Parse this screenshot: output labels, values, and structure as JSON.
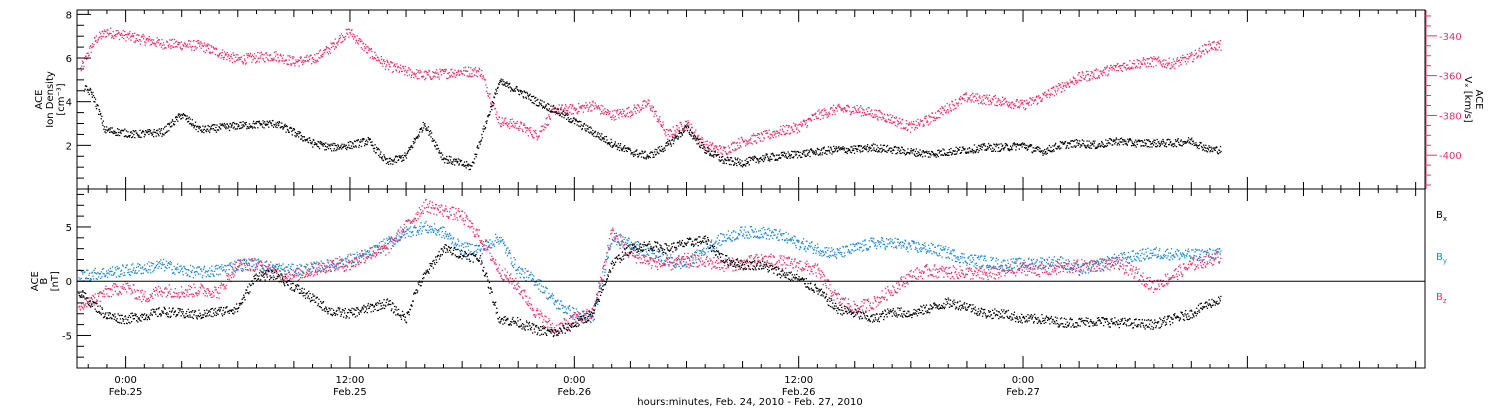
{
  "colors": {
    "black": "#000000",
    "magenta": "#e8336a",
    "blue": "#1f86d8"
  },
  "footer": {
    "xlabel": "hours:minutes, Feb. 24, 2010 - Feb. 27, 2010"
  },
  "chart_data": [
    {
      "type": "scatter",
      "panel": "top",
      "ylabel": [
        "ACE",
        "Ion Density",
        "[cm⁻³]"
      ],
      "y2label": [
        "ACE",
        "Vₓ [km/s]"
      ],
      "ylim": [
        0,
        8.2
      ],
      "y2lim": [
        -417,
        -327
      ],
      "y_ticks": [
        2,
        4,
        6,
        8
      ],
      "y2_ticks": [
        -400,
        -380,
        -360,
        -340
      ],
      "grid": false,
      "series": [
        {
          "axis": "left",
          "color": "#000000",
          "knots_hours": [
            -2.2,
            -1.8,
            -1.4,
            -1.1,
            0.5,
            2,
            3,
            4,
            6,
            8,
            9,
            10,
            11,
            12,
            13,
            14,
            15,
            16,
            17,
            17.8,
            18.5,
            20,
            21,
            22,
            23,
            24,
            25,
            26,
            27,
            28,
            29,
            30,
            31,
            32,
            33,
            34,
            35,
            36,
            37,
            38,
            39,
            40,
            41,
            42,
            43,
            44,
            45,
            46,
            47,
            48,
            49,
            50,
            51,
            52,
            53,
            54,
            55,
            56,
            57,
            58,
            58.6
          ],
          "knots_values": [
            4.6,
            4.4,
            3.5,
            2.7,
            2.5,
            2.6,
            3.4,
            2.7,
            2.9,
            3.0,
            2.6,
            2.1,
            1.9,
            2.0,
            2.2,
            1.2,
            1.5,
            3.0,
            1.4,
            1.2,
            1.0,
            4.9,
            4.5,
            4.0,
            3.6,
            3.1,
            2.6,
            2.1,
            1.7,
            1.5,
            2.0,
            2.8,
            1.8,
            1.3,
            1.2,
            1.4,
            1.5,
            1.6,
            1.7,
            1.8,
            1.8,
            1.9,
            1.8,
            1.7,
            1.6,
            1.7,
            1.8,
            1.9,
            1.9,
            2.0,
            1.7,
            2.0,
            2.1,
            2.0,
            2.2,
            2.1,
            2.1,
            2.1,
            2.2,
            1.8,
            1.8
          ]
        },
        {
          "axis": "right",
          "color": "#e8336a",
          "knots_hours": [
            -2.4,
            -2.0,
            -1.6,
            -1.0,
            0,
            2,
            4,
            6,
            8,
            9,
            10,
            11,
            11.5,
            12,
            13,
            14,
            15,
            16,
            18,
            19,
            20,
            21,
            22,
            23,
            24,
            25,
            26,
            27,
            28,
            29,
            30,
            31,
            32,
            33,
            34,
            35,
            36,
            37,
            38,
            39,
            40,
            41,
            42,
            43,
            44,
            45,
            46,
            47,
            48,
            49,
            50,
            51,
            52,
            53,
            54,
            55,
            56,
            57,
            58,
            58.6
          ],
          "knots_values": [
            -357,
            -349,
            -342,
            -338,
            -340,
            -344,
            -345,
            -352,
            -350,
            -353,
            -352,
            -346,
            -341,
            -338,
            -348,
            -355,
            -358,
            -360,
            -358,
            -358,
            -383,
            -385,
            -390,
            -377,
            -377,
            -375,
            -380,
            -378,
            -374,
            -390,
            -384,
            -395,
            -398,
            -393,
            -391,
            -388,
            -386,
            -380,
            -377,
            -377,
            -379,
            -382,
            -386,
            -382,
            -376,
            -371,
            -372,
            -373,
            -375,
            -371,
            -366,
            -361,
            -359,
            -356,
            -354,
            -353,
            -354,
            -351,
            -345,
            -345
          ]
        }
      ]
    },
    {
      "type": "scatter",
      "panel": "bottom",
      "ylabel": [
        "ACE",
        "B",
        "[nT]"
      ],
      "ylim": [
        -8,
        8.5
      ],
      "y_ticks": [
        -5,
        0,
        5
      ],
      "zero_line": true,
      "grid": false,
      "legend_position": "right",
      "series": [
        {
          "name": "Bx",
          "color": "#000000",
          "knots_hours": [
            -2.5,
            -1,
            0,
            1,
            2,
            3,
            4,
            5,
            6,
            7,
            8,
            9,
            10,
            11,
            12,
            13,
            14,
            15,
            15.5,
            16,
            17,
            18,
            19,
            20,
            21,
            22,
            23,
            24,
            25,
            26,
            27,
            28,
            29,
            30,
            31,
            32,
            33,
            34,
            35,
            36,
            37,
            38,
            39,
            40,
            41,
            42,
            43,
            44,
            45,
            46,
            47,
            48,
            49,
            50,
            51,
            52,
            53,
            54,
            55,
            56,
            57,
            58,
            58.6
          ],
          "knots_values": [
            -1.0,
            -3.2,
            -3.5,
            -3.2,
            -2.8,
            -3.0,
            -3.1,
            -2.8,
            -2.5,
            0.5,
            0.6,
            -0.5,
            -1.6,
            -2.8,
            -3.0,
            -2.5,
            -2.0,
            -3.5,
            -1.0,
            0.5,
            3.0,
            2.5,
            2.0,
            -3.5,
            -3.8,
            -4.5,
            -4.8,
            -4.0,
            -3.0,
            1.5,
            3.0,
            3.3,
            3.0,
            3.5,
            3.8,
            2.0,
            1.5,
            1.5,
            0.8,
            0.2,
            -0.8,
            -2.5,
            -3.0,
            -3.5,
            -2.8,
            -3.0,
            -2.5,
            -2.0,
            -2.3,
            -3.0,
            -3.0,
            -3.5,
            -3.5,
            -3.8,
            -3.8,
            -3.7,
            -3.8,
            -3.9,
            -4.0,
            -3.5,
            -3.0,
            -2.0,
            -1.8
          ]
        },
        {
          "name": "By",
          "color": "#1f86d8",
          "knots_hours": [
            -2.5,
            -1,
            0,
            1,
            2,
            3,
            4,
            5,
            6,
            7,
            8,
            9,
            10,
            11,
            12,
            13,
            14,
            15,
            16,
            17,
            18,
            19,
            20,
            21,
            22,
            23,
            24,
            25,
            26,
            27,
            28,
            29,
            30,
            31,
            32,
            33,
            34,
            35,
            36,
            37,
            38,
            39,
            40,
            41,
            42,
            43,
            44,
            45,
            46,
            47,
            48,
            49,
            50,
            51,
            52,
            53,
            54,
            55,
            56,
            57,
            58,
            58.6
          ],
          "knots_values": [
            0.5,
            0.8,
            1.0,
            1.2,
            1.5,
            1.0,
            0.8,
            1.0,
            1.5,
            1.6,
            1.2,
            1.0,
            1.2,
            1.5,
            2.0,
            2.5,
            3.5,
            4.5,
            5.0,
            4.5,
            3.0,
            3.0,
            4.0,
            1.0,
            0.0,
            -2.0,
            -3.0,
            -3.5,
            4.0,
            3.5,
            2.5,
            2.0,
            1.5,
            3.0,
            4.0,
            4.5,
            4.5,
            4.2,
            3.5,
            3.0,
            2.5,
            3.0,
            3.5,
            3.5,
            3.2,
            3.0,
            2.6,
            2.0,
            1.8,
            1.5,
            1.6,
            1.7,
            1.8,
            1.0,
            1.5,
            2.0,
            2.3,
            2.6,
            2.5,
            2.4,
            2.5,
            2.5
          ]
        },
        {
          "name": "Bz",
          "color": "#e8336a",
          "knots_hours": [
            -2.5,
            -1,
            0,
            1,
            2,
            3,
            4,
            5,
            6,
            7,
            8,
            9,
            10,
            11,
            12,
            13,
            14,
            15,
            15.5,
            16,
            17,
            18,
            19,
            20,
            21,
            22,
            23,
            24,
            25,
            26,
            27,
            28,
            29,
            30,
            31,
            32,
            33,
            34,
            35,
            36,
            37,
            38,
            39,
            40,
            41,
            42,
            43,
            44,
            45,
            46,
            47,
            48,
            49,
            50,
            51,
            52,
            53,
            54,
            55,
            56,
            57,
            58,
            58.6
          ],
          "knots_values": [
            -2.5,
            -1.0,
            -0.5,
            -1.5,
            -0.8,
            -1.0,
            -0.8,
            -1.0,
            1.5,
            1.5,
            0.8,
            0.5,
            1.0,
            1.5,
            1.5,
            2.5,
            3.0,
            5.0,
            6.0,
            7.0,
            6.5,
            6.0,
            4.0,
            1.0,
            -0.5,
            -3.0,
            -4.5,
            -3.5,
            -3.0,
            4.5,
            2.5,
            1.8,
            1.5,
            2.0,
            1.8,
            1.5,
            1.6,
            2.0,
            1.8,
            1.5,
            1.0,
            -1.5,
            -2.5,
            -2.0,
            -0.8,
            0.5,
            1.0,
            0.8,
            0.8,
            0.6,
            0.9,
            1.2,
            1.0,
            1.2,
            1.4,
            1.5,
            1.6,
            0.8,
            -0.5,
            0.5,
            1.5,
            2.0,
            2.3
          ]
        }
      ]
    }
  ],
  "x_axis": {
    "range_hours": [
      -2.6,
      69.5
    ],
    "major_ticks": [
      {
        "hour": 0,
        "time": "0:00",
        "date": "Feb.25"
      },
      {
        "hour": 12,
        "time": "12:00",
        "date": "Feb.25"
      },
      {
        "hour": 24,
        "time": "0:00",
        "date": "Feb.26"
      },
      {
        "hour": 36,
        "time": "12:00",
        "date": "Feb.26"
      },
      {
        "hour": 48,
        "time": "0:00",
        "date": "Feb.27"
      }
    ]
  },
  "legend": [
    {
      "main": "B",
      "sub": "x",
      "color": "#000000"
    },
    {
      "main": "B",
      "sub": "y",
      "color": "#1f86d8"
    },
    {
      "main": "B",
      "sub": "z",
      "color": "#e8336a"
    }
  ]
}
